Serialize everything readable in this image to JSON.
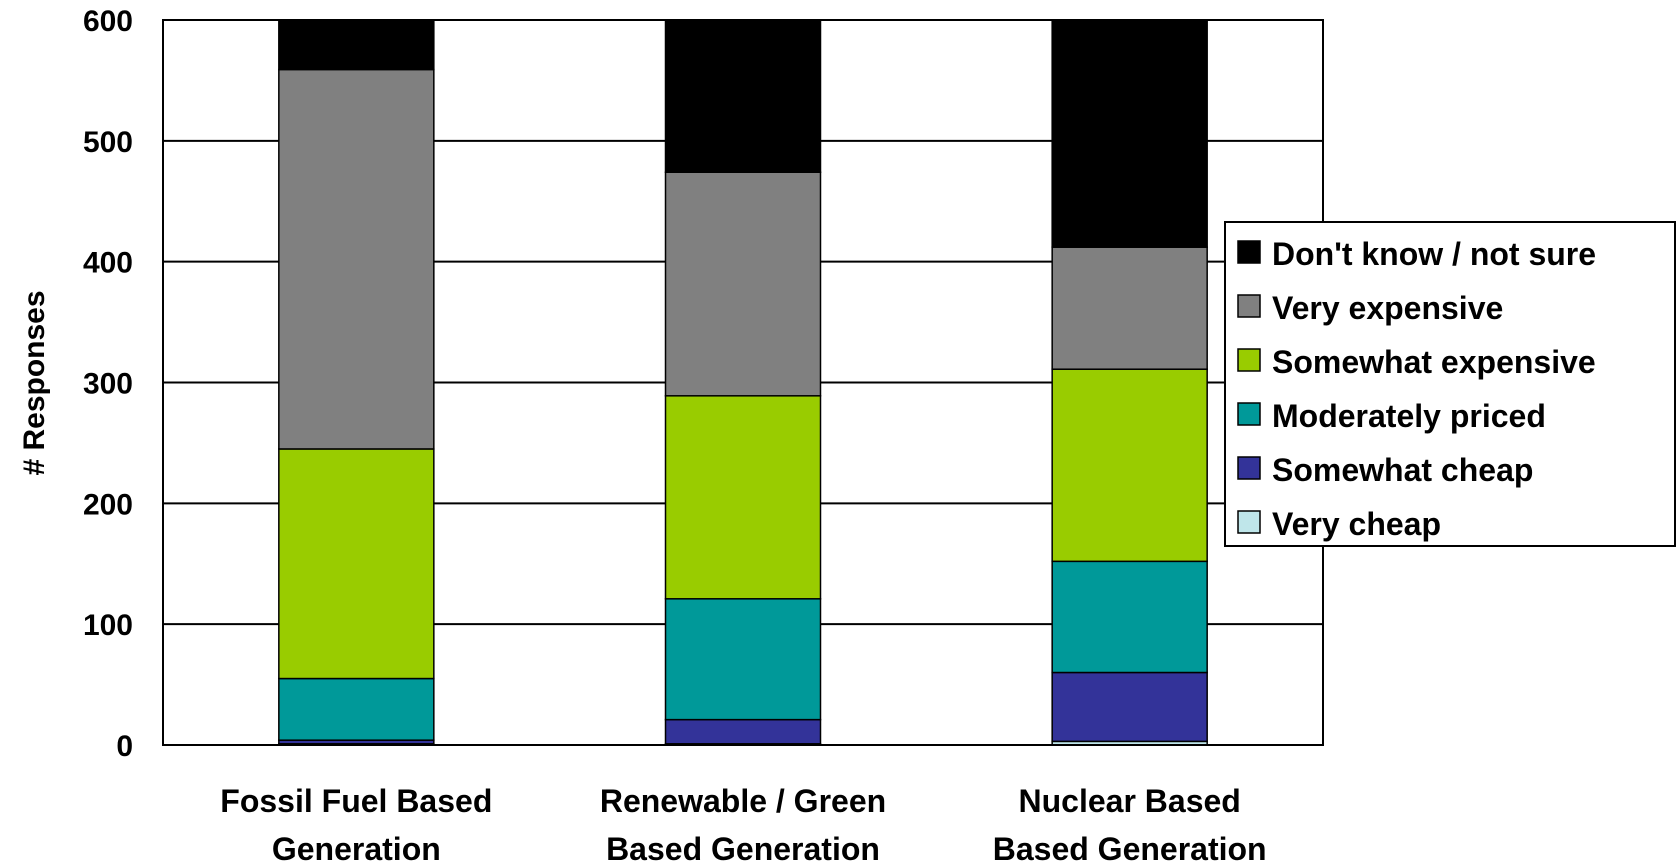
{
  "chart_data": {
    "type": "bar",
    "stacked": true,
    "title": "",
    "xlabel": "",
    "ylabel": "# Responses",
    "ylim": [
      0,
      600
    ],
    "yticks": [
      0,
      100,
      200,
      300,
      400,
      500,
      600
    ],
    "grid": true,
    "legend_position": "right",
    "categories": [
      [
        "Fossil Fuel Based",
        "Generation"
      ],
      [
        "Renewable / Green",
        "Based Generation"
      ],
      [
        "Nuclear Based",
        "Based Generation"
      ]
    ],
    "series": [
      {
        "name": "Very cheap",
        "color": "#bfe6ea",
        "values": [
          1,
          1,
          3
        ]
      },
      {
        "name": "Somewhat cheap",
        "color": "#333399",
        "values": [
          3,
          20,
          57
        ]
      },
      {
        "name": "Moderately priced",
        "color": "#009999",
        "values": [
          51,
          100,
          92
        ]
      },
      {
        "name": "Somewhat expensive",
        "color": "#99cc00",
        "values": [
          190,
          168,
          159
        ]
      },
      {
        "name": "Very expensive",
        "color": "#808080",
        "values": [
          314,
          185,
          101
        ]
      },
      {
        "name": "Don't know / not sure",
        "color": "#000000",
        "values": [
          41,
          126,
          188
        ]
      }
    ]
  }
}
